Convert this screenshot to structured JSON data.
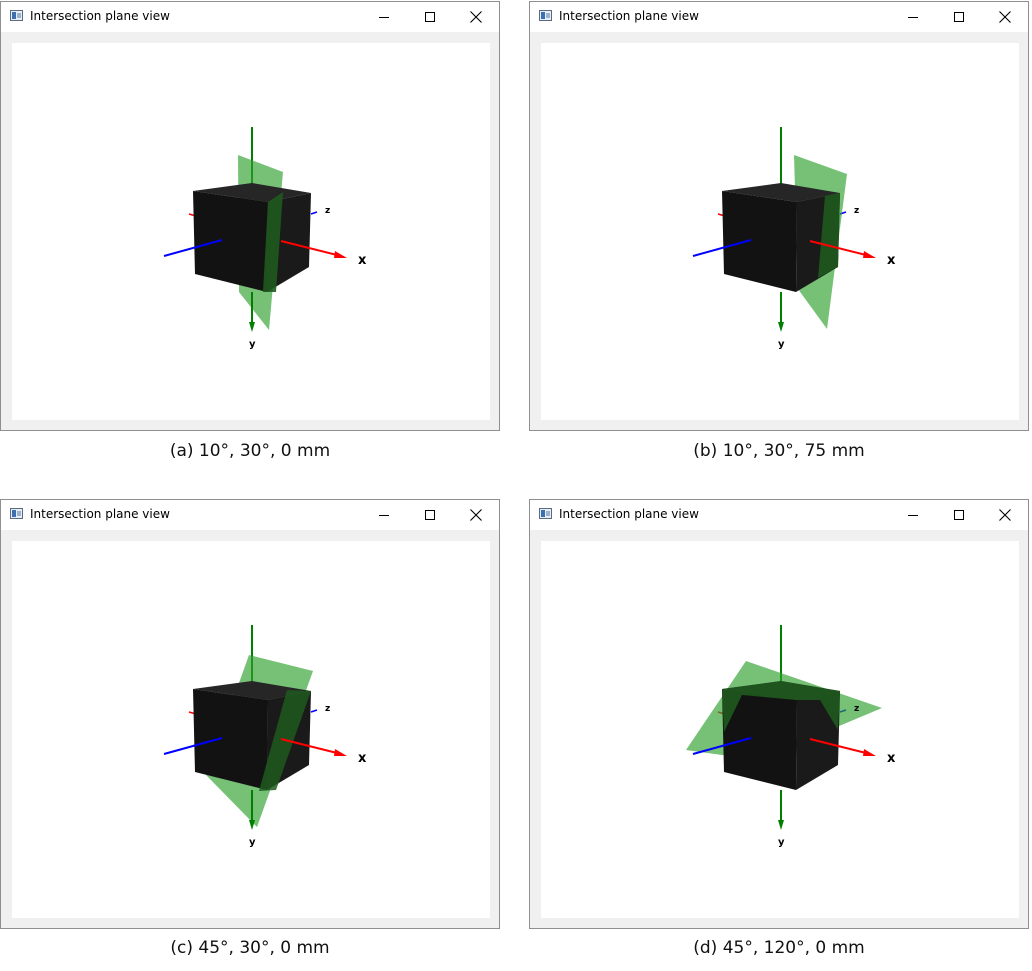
{
  "windows": [
    {
      "title": "Intersection plane view",
      "caption": "(a) 10°, 30°, 0 mm",
      "variant": "a"
    },
    {
      "title": "Intersection plane view",
      "caption": "(b) 10°, 30°, 75 mm",
      "variant": "b"
    },
    {
      "title": "Intersection plane view",
      "caption": "(c) 45°, 30°, 0 mm",
      "variant": "c"
    },
    {
      "title": "Intersection plane view",
      "caption": "(d) 45°, 120°, 0 mm",
      "variant": "d"
    }
  ],
  "axes": {
    "x": "x",
    "y": "y",
    "z": "z"
  },
  "colors": {
    "x_axis": "#ff0000",
    "y_axis": "#008000",
    "z_axis": "#0000ff",
    "cube": "#111111",
    "plane": "#2ca02c"
  }
}
